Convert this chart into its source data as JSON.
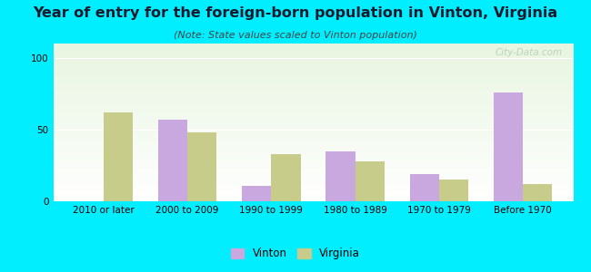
{
  "title": "Year of entry for the foreign-born population in Vinton, Virginia",
  "subtitle": "(Note: State values scaled to Vinton population)",
  "categories": [
    "2010 or later",
    "2000 to 2009",
    "1990 to 1999",
    "1980 to 1989",
    "1970 to 1979",
    "Before 1970"
  ],
  "vinton_values": [
    0,
    57,
    11,
    35,
    19,
    76
  ],
  "virginia_values": [
    62,
    48,
    33,
    28,
    15,
    12
  ],
  "vinton_color": "#c9a8e0",
  "virginia_color": "#c8cc8a",
  "background_color": "#00eeff",
  "grad_top": "#e8f5e0",
  "grad_bottom": "#ffffff",
  "ylim": [
    0,
    110
  ],
  "yticks": [
    0,
    50,
    100
  ],
  "bar_width": 0.35,
  "title_fontsize": 11.5,
  "subtitle_fontsize": 8,
  "tick_fontsize": 7.5,
  "legend_fontsize": 8.5,
  "watermark": "City-Data.com"
}
